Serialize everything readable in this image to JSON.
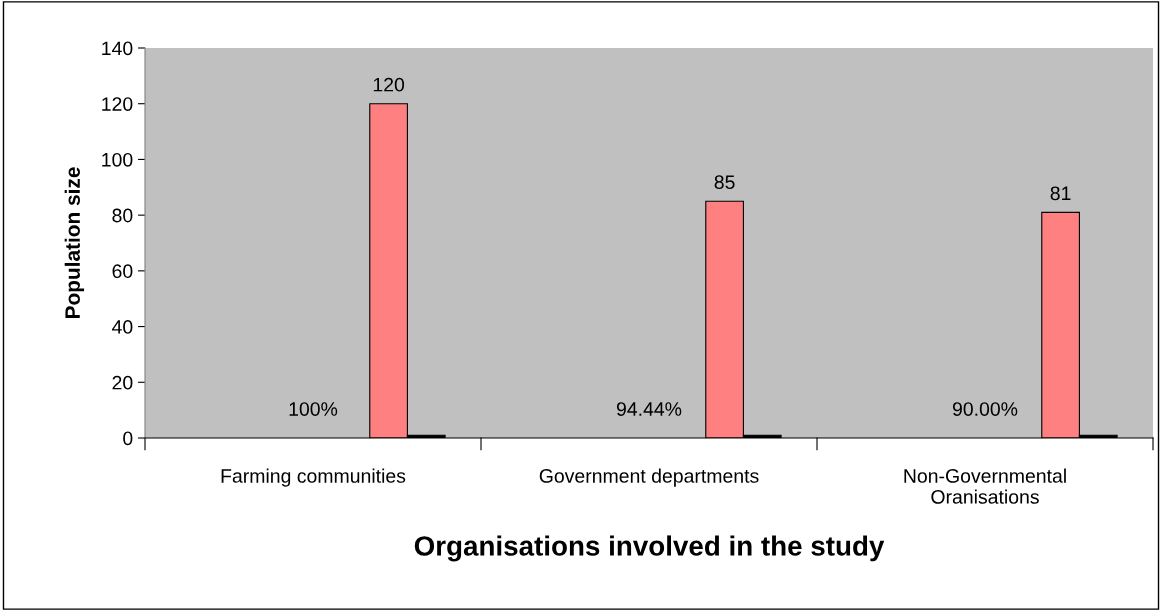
{
  "chart_data": {
    "type": "bar",
    "xlabel": "Organisations involved in the study",
    "ylabel": "Population size",
    "categories": [
      "Farming communities",
      "Government departments",
      "Non-Governmental\nOranisations"
    ],
    "series": [
      {
        "color": "#ff8080",
        "values": [
          120,
          85,
          81
        ],
        "value_labels": [
          "120",
          "85",
          "81"
        ]
      },
      {
        "color": "#000000",
        "values": [
          1,
          1,
          1
        ]
      }
    ],
    "annotations": [
      "100%",
      "94.44%",
      "90.00%"
    ],
    "ylim": [
      0,
      140
    ],
    "yticks": [
      0,
      20,
      40,
      60,
      80,
      100,
      120,
      140
    ],
    "grid": false,
    "legend": false
  }
}
